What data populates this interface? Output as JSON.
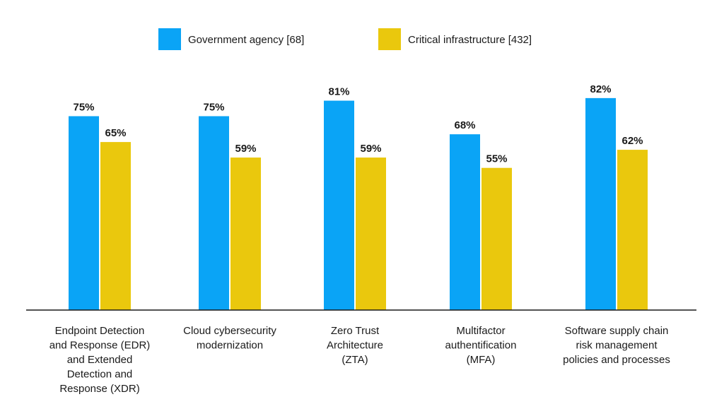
{
  "chart_data": {
    "type": "bar",
    "title": "",
    "xlabel": "",
    "ylabel": "",
    "ylim": [
      0,
      100
    ],
    "unit": "%",
    "grid": false,
    "legend_position": "top-center",
    "categories": [
      [
        "Endpoint Detection",
        "and Response (EDR)",
        "and Extended",
        "Detection and",
        "Response (XDR)"
      ],
      [
        "Cloud cybersecurity",
        "modernization"
      ],
      [
        "Zero Trust",
        "Architecture",
        "(ZTA)"
      ],
      [
        "Multifactor",
        "authentification",
        "(MFA)"
      ],
      [
        "Software supply chain",
        "risk management",
        "policies and processes"
      ]
    ],
    "series": [
      {
        "name": "Government agency [68]",
        "color": "#0aa4f6",
        "values": [
          75,
          75,
          81,
          68,
          82
        ],
        "labels": [
          "75%",
          "75%",
          "81%",
          "68%",
          "82%"
        ]
      },
      {
        "name": "Critical infrastructure [432]",
        "color": "#eac80d",
        "values": [
          65,
          59,
          59,
          55,
          62
        ],
        "labels": [
          "65%",
          "59%",
          "59%",
          "55%",
          "62%"
        ]
      }
    ]
  }
}
